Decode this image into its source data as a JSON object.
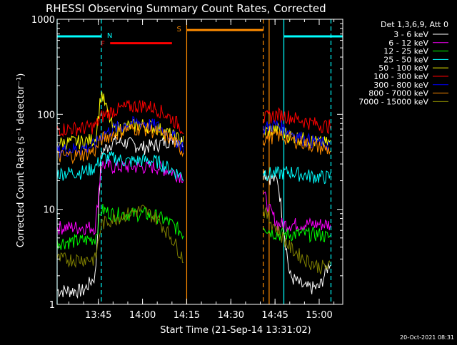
{
  "chart_data": {
    "type": "line",
    "title": "RHESSI Observing Summary Count Rates, Corrected",
    "xlabel": "Start Time (21-Sep-14 13:31:02)",
    "ylabel": "Corrected Count Rate (s⁻¹ detector⁻¹)",
    "y_scale": "log",
    "ylim": [
      1,
      1000
    ],
    "xlim": [
      "13:31",
      "15:08"
    ],
    "x_ticks": [
      "13:45",
      "14:00",
      "14:15",
      "14:30",
      "14:45",
      "15:00"
    ],
    "y_ticks": [
      "1",
      "10",
      "100",
      "1000"
    ],
    "legend_title": "Det 1,3,6,9, Att 0",
    "legend_placement": "outside-right",
    "timestamp": "20-Oct-2021 08:31",
    "flag_labels": {
      "N": "N",
      "F": "F",
      "S": "S"
    },
    "colors": {
      "background": "#000000",
      "axis": "#ffffff",
      "night_flag": "#00ffff",
      "flare_flag": "#ff0000",
      "saa_flag": "#ff8c00"
    },
    "flags": [
      {
        "label": "N",
        "start": "13:31",
        "end": "13:46",
        "value": 660,
        "color": "#00ffff",
        "style": "bar"
      },
      {
        "label": "F",
        "start": "13:49",
        "end": "14:10",
        "value": 560,
        "color": "#ff0000",
        "style": "bar"
      },
      {
        "label": "S",
        "start": "14:15",
        "end": "14:41",
        "value": 770,
        "color": "#ff8c00",
        "style": "bar"
      },
      {
        "label": "",
        "start": "14:48",
        "end": "15:08",
        "value": 660,
        "color": "#00ffff",
        "style": "bar"
      }
    ],
    "markers": [
      {
        "time": "13:31",
        "color": "#00ffff",
        "dash": false
      },
      {
        "time": "13:46",
        "color": "#00ffff",
        "dash": true
      },
      {
        "time": "14:15",
        "color": "#ff8c00",
        "dash": false
      },
      {
        "time": "14:41",
        "color": "#ff8c00",
        "dash": true
      },
      {
        "time": "14:43",
        "color": "#ff8c00",
        "dash": false
      },
      {
        "time": "14:48",
        "color": "#00ffff",
        "dash": false
      },
      {
        "time": "15:04",
        "color": "#00ffff",
        "dash": true
      }
    ],
    "segments": [
      {
        "x": [
          "13:31",
          "13:40",
          "13:44",
          "13:46",
          "13:50",
          "13:55",
          "14:00",
          "14:05",
          "14:10",
          "14:14"
        ]
      },
      {
        "x": [
          "14:41",
          "14:43",
          "14:46",
          "14:50",
          "14:55",
          "15:00",
          "15:04"
        ]
      }
    ],
    "series": [
      {
        "name": "3 - 6 keV",
        "color": "#ffffff",
        "values": [
          [
            1.4,
            1.4,
            2,
            40,
            52,
            50,
            45,
            48,
            55,
            52
          ],
          [
            25,
            22,
            20,
            2,
            1.5,
            1.5,
            3
          ]
        ]
      },
      {
        "name": "6 - 12 keV",
        "color": "#ff00ff",
        "values": [
          [
            6.5,
            6.5,
            6.5,
            30,
            28,
            28,
            28,
            28,
            25,
            22
          ],
          [
            15,
            10,
            7,
            7,
            7,
            7,
            7
          ]
        ]
      },
      {
        "name": "12 - 25 keV",
        "color": "#00ff00",
        "values": [
          [
            4.5,
            4.7,
            5,
            10,
            9,
            9,
            9,
            8.5,
            7,
            5.5
          ],
          [
            7,
            6,
            5.5,
            5.5,
            5.5,
            5.5,
            5
          ]
        ]
      },
      {
        "name": "25 - 50 keV",
        "color": "#00ffff",
        "values": [
          [
            24,
            25,
            28,
            35,
            35,
            32,
            33,
            32,
            26,
            22
          ],
          [
            25,
            24,
            24,
            25,
            23,
            22,
            22
          ]
        ]
      },
      {
        "name": "50 - 100 keV",
        "color": "#ffff00",
        "values": [
          [
            50,
            52,
            55,
            170,
            70,
            75,
            78,
            72,
            60,
            52
          ],
          [
            65,
            68,
            70,
            60,
            55,
            50,
            50
          ]
        ]
      },
      {
        "name": "100 - 300 keV",
        "color": "#ff0000",
        "values": [
          [
            70,
            72,
            75,
            95,
            110,
            120,
            125,
            115,
            90,
            70
          ],
          [
            90,
            95,
            100,
            95,
            85,
            78,
            75
          ]
        ]
      },
      {
        "name": "300 - 800 keV",
        "color": "#0000ff",
        "values": [
          [
            42,
            44,
            48,
            60,
            70,
            80,
            82,
            75,
            60,
            45
          ],
          [
            70,
            75,
            78,
            65,
            55,
            50,
            48
          ]
        ]
      },
      {
        "name": "800 - 7000 keV",
        "color": "#ff8c00",
        "values": [
          [
            36,
            38,
            42,
            55,
            62,
            70,
            72,
            65,
            55,
            40
          ],
          [
            55,
            58,
            60,
            55,
            50,
            45,
            42
          ]
        ]
      },
      {
        "name": "7000 - 15000 keV",
        "color": "#808000",
        "values": [
          [
            3,
            3,
            3,
            7,
            8,
            9,
            10,
            8,
            5,
            3
          ],
          [
            10,
            8,
            6,
            4,
            3,
            2.5,
            2.5
          ]
        ]
      }
    ]
  }
}
